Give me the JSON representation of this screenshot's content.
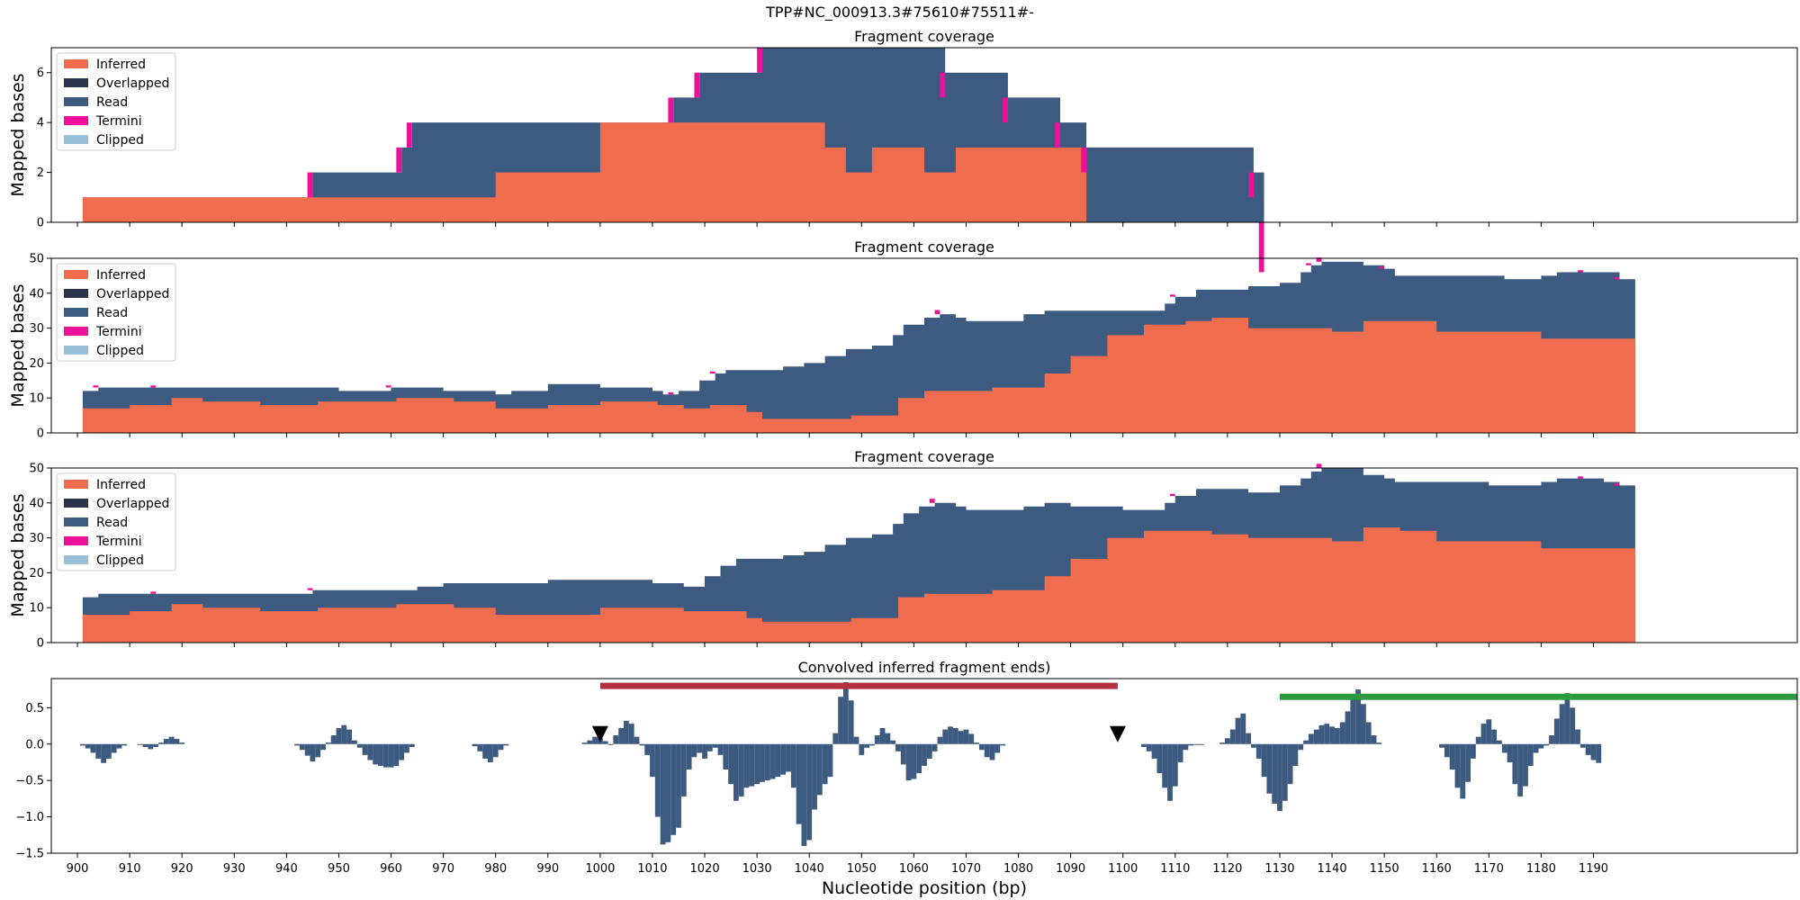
{
  "figure": {
    "suptitle": "TPP#NC_000913.3#75610#75511#-",
    "xlabel": "Nucleotide position (bp)",
    "xlim": [
      895,
      1229
    ],
    "xticks": [
      900,
      910,
      920,
      930,
      940,
      950,
      960,
      970,
      980,
      990,
      1000,
      1010,
      1020,
      1030,
      1040,
      1050,
      1060,
      1070,
      1080,
      1090,
      1100,
      1110,
      1120,
      1130,
      1140,
      1150,
      1160,
      1170,
      1180,
      1190
    ]
  },
  "legend": [
    {
      "name": "Inferred",
      "color": "#ef6c4f"
    },
    {
      "name": "Overlapped",
      "color": "#2a3349"
    },
    {
      "name": "Read",
      "color": "#3d5a80"
    },
    {
      "name": "Termini",
      "color": "#ee109a"
    },
    {
      "name": "Clipped",
      "color": "#98c1d9"
    }
  ],
  "chart_data": [
    {
      "type": "area",
      "title": "Fragment coverage",
      "ylabel": "Mapped bases",
      "ylim": [
        0,
        7
      ],
      "yticks": [
        0,
        2,
        4,
        6
      ],
      "stacked": true,
      "legend_position": "upper-left",
      "inferred": [
        [
          901,
          1
        ],
        [
          945,
          1
        ],
        [
          980,
          2
        ],
        [
          1000,
          4
        ],
        [
          1039,
          4
        ],
        [
          1043,
          3
        ],
        [
          1047,
          2
        ],
        [
          1052,
          3
        ],
        [
          1062,
          2
        ],
        [
          1068,
          3
        ],
        [
          1093,
          0
        ],
        [
          1127,
          0
        ]
      ],
      "total": [
        [
          901,
          1
        ],
        [
          945,
          2
        ],
        [
          962,
          3
        ],
        [
          964,
          4
        ],
        [
          1000,
          4
        ],
        [
          1014,
          5
        ],
        [
          1019,
          6
        ],
        [
          1031,
          7
        ],
        [
          1066,
          6
        ],
        [
          1078,
          5
        ],
        [
          1088,
          4
        ],
        [
          1093,
          3
        ],
        [
          1125,
          2
        ],
        [
          1127,
          0
        ]
      ],
      "termini": [
        [
          945,
          944,
          1
        ],
        [
          962,
          961,
          1
        ],
        [
          964,
          963,
          1
        ],
        [
          1014,
          1013,
          1
        ],
        [
          1019,
          1018,
          1
        ],
        [
          1031,
          1030,
          1
        ],
        [
          1066,
          1065,
          1
        ],
        [
          1078,
          1077,
          1
        ],
        [
          1088,
          1087,
          1
        ],
        [
          1093,
          1092,
          1
        ],
        [
          1125,
          1124,
          1
        ],
        [
          1127,
          1126,
          2
        ]
      ]
    },
    {
      "type": "area",
      "title": "Fragment coverage",
      "ylabel": "Mapped bases",
      "ylim": [
        0,
        50
      ],
      "yticks": [
        0,
        10,
        20,
        30,
        40,
        50
      ],
      "stacked": true,
      "legend_position": "upper-left",
      "inferred": [
        [
          901,
          7
        ],
        [
          910,
          8
        ],
        [
          918,
          10
        ],
        [
          924,
          9
        ],
        [
          935,
          8
        ],
        [
          946,
          9
        ],
        [
          953,
          9
        ],
        [
          961,
          10
        ],
        [
          972,
          9
        ],
        [
          980,
          7
        ],
        [
          990,
          8
        ],
        [
          1000,
          9
        ],
        [
          1011,
          8
        ],
        [
          1016,
          7
        ],
        [
          1021,
          8
        ],
        [
          1028,
          6
        ],
        [
          1031,
          4
        ],
        [
          1048,
          5
        ],
        [
          1057,
          10
        ],
        [
          1062,
          12
        ],
        [
          1075,
          13
        ],
        [
          1085,
          17
        ],
        [
          1090,
          22
        ],
        [
          1097,
          28
        ],
        [
          1104,
          31
        ],
        [
          1112,
          32
        ],
        [
          1117,
          33
        ],
        [
          1124,
          30
        ],
        [
          1140,
          29
        ],
        [
          1146,
          32
        ],
        [
          1153,
          32
        ],
        [
          1160,
          29
        ],
        [
          1170,
          29
        ],
        [
          1180,
          27
        ],
        [
          1198,
          27
        ]
      ],
      "total": [
        [
          901,
          12
        ],
        [
          904,
          13
        ],
        [
          915,
          13
        ],
        [
          920,
          13
        ],
        [
          935,
          13
        ],
        [
          950,
          12
        ],
        [
          960,
          13
        ],
        [
          970,
          12
        ],
        [
          980,
          11
        ],
        [
          983,
          12
        ],
        [
          990,
          14
        ],
        [
          1000,
          13
        ],
        [
          1010,
          12
        ],
        [
          1012,
          11
        ],
        [
          1015,
          12
        ],
        [
          1019,
          15
        ],
        [
          1022,
          17
        ],
        [
          1024,
          18
        ],
        [
          1030,
          18
        ],
        [
          1035,
          19
        ],
        [
          1039,
          20
        ],
        [
          1043,
          22
        ],
        [
          1047,
          24
        ],
        [
          1052,
          25
        ],
        [
          1056,
          28
        ],
        [
          1058,
          31
        ],
        [
          1062,
          33
        ],
        [
          1065,
          34
        ],
        [
          1068,
          33
        ],
        [
          1070,
          32
        ],
        [
          1075,
          32
        ],
        [
          1081,
          34
        ],
        [
          1085,
          35
        ],
        [
          1090,
          35
        ],
        [
          1100,
          35
        ],
        [
          1108,
          37
        ],
        [
          1110,
          39
        ],
        [
          1114,
          41
        ],
        [
          1120,
          41
        ],
        [
          1124,
          42
        ],
        [
          1130,
          43
        ],
        [
          1134,
          46
        ],
        [
          1136,
          48
        ],
        [
          1138,
          49
        ],
        [
          1142,
          49
        ],
        [
          1146,
          48
        ],
        [
          1150,
          47
        ],
        [
          1152,
          45
        ],
        [
          1160,
          45
        ],
        [
          1166,
          45
        ],
        [
          1170,
          45
        ],
        [
          1173,
          44
        ],
        [
          1176,
          44
        ],
        [
          1180,
          45
        ],
        [
          1183,
          46
        ],
        [
          1188,
          46
        ],
        [
          1192,
          46
        ],
        [
          1195,
          44
        ],
        [
          1198,
          44
        ]
      ],
      "termini": [
        [
          904,
          903,
          1
        ],
        [
          915,
          914,
          1
        ],
        [
          960,
          959,
          1
        ],
        [
          1014,
          1013,
          1
        ],
        [
          1022,
          1021,
          1
        ],
        [
          1065,
          1064,
          2
        ],
        [
          1110,
          1109,
          1
        ],
        [
          1136,
          1135,
          1
        ],
        [
          1138,
          1137,
          2
        ],
        [
          1150,
          1149,
          1
        ],
        [
          1188,
          1187,
          1
        ],
        [
          1195,
          1194,
          1
        ]
      ]
    },
    {
      "type": "area",
      "title": "Fragment coverage",
      "ylabel": "Mapped bases",
      "ylim": [
        0,
        50
      ],
      "yticks": [
        0,
        10,
        20,
        30,
        40,
        50
      ],
      "stacked": true,
      "legend_position": "upper-left",
      "inferred": [
        [
          901,
          8
        ],
        [
          910,
          9
        ],
        [
          918,
          11
        ],
        [
          924,
          10
        ],
        [
          935,
          9
        ],
        [
          946,
          10
        ],
        [
          953,
          10
        ],
        [
          961,
          11
        ],
        [
          972,
          10
        ],
        [
          980,
          8
        ],
        [
          990,
          8
        ],
        [
          1000,
          10
        ],
        [
          1011,
          10
        ],
        [
          1016,
          9
        ],
        [
          1021,
          9
        ],
        [
          1028,
          7
        ],
        [
          1031,
          6
        ],
        [
          1048,
          7
        ],
        [
          1057,
          13
        ],
        [
          1062,
          14
        ],
        [
          1075,
          15
        ],
        [
          1085,
          19
        ],
        [
          1090,
          24
        ],
        [
          1097,
          30
        ],
        [
          1104,
          32
        ],
        [
          1112,
          32
        ],
        [
          1117,
          31
        ],
        [
          1124,
          30
        ],
        [
          1140,
          29
        ],
        [
          1146,
          33
        ],
        [
          1153,
          32
        ],
        [
          1160,
          29
        ],
        [
          1170,
          29
        ],
        [
          1180,
          27
        ],
        [
          1198,
          27
        ]
      ],
      "total": [
        [
          901,
          13
        ],
        [
          904,
          14
        ],
        [
          915,
          14
        ],
        [
          920,
          14
        ],
        [
          935,
          14
        ],
        [
          945,
          15
        ],
        [
          955,
          15
        ],
        [
          965,
          16
        ],
        [
          970,
          17
        ],
        [
          980,
          17
        ],
        [
          990,
          18
        ],
        [
          1000,
          18
        ],
        [
          1010,
          17
        ],
        [
          1016,
          16
        ],
        [
          1020,
          19
        ],
        [
          1023,
          22
        ],
        [
          1026,
          24
        ],
        [
          1030,
          24
        ],
        [
          1035,
          25
        ],
        [
          1039,
          26
        ],
        [
          1043,
          28
        ],
        [
          1047,
          30
        ],
        [
          1052,
          31
        ],
        [
          1056,
          34
        ],
        [
          1058,
          37
        ],
        [
          1061,
          39
        ],
        [
          1064,
          40
        ],
        [
          1068,
          39
        ],
        [
          1070,
          38
        ],
        [
          1075,
          38
        ],
        [
          1081,
          39
        ],
        [
          1085,
          40
        ],
        [
          1090,
          39
        ],
        [
          1100,
          38
        ],
        [
          1108,
          40
        ],
        [
          1110,
          42
        ],
        [
          1114,
          44
        ],
        [
          1120,
          44
        ],
        [
          1124,
          43
        ],
        [
          1130,
          45
        ],
        [
          1134,
          47
        ],
        [
          1136,
          49
        ],
        [
          1138,
          50
        ],
        [
          1142,
          50
        ],
        [
          1146,
          48
        ],
        [
          1150,
          47
        ],
        [
          1152,
          46
        ],
        [
          1160,
          46
        ],
        [
          1166,
          46
        ],
        [
          1170,
          45
        ],
        [
          1173,
          45
        ],
        [
          1176,
          45
        ],
        [
          1180,
          46
        ],
        [
          1183,
          47
        ],
        [
          1188,
          47
        ],
        [
          1192,
          46
        ],
        [
          1195,
          45
        ],
        [
          1198,
          45
        ]
      ],
      "termini": [
        [
          915,
          914,
          1
        ],
        [
          945,
          944,
          1
        ],
        [
          1064,
          1063,
          2
        ],
        [
          1110,
          1109,
          1
        ],
        [
          1138,
          1137,
          2
        ],
        [
          1188,
          1187,
          1
        ],
        [
          1195,
          1194,
          1
        ]
      ]
    },
    {
      "type": "bar",
      "title": "Convolved inferred fragment ends)",
      "ylabel": "",
      "ylim": [
        -1.5,
        0.9
      ],
      "yticks": [
        -1.5,
        -1.0,
        -0.5,
        0.0,
        0.5
      ],
      "ytick_labels": [
        "−1.5",
        "−1.0",
        "−0.5",
        "0.0",
        "0.5"
      ],
      "bar_color": "#3d5a80",
      "segments": [
        {
          "start": 901,
          "values": [
            -0.02,
            -0.06,
            -0.12,
            -0.2,
            -0.26,
            -0.2,
            -0.12,
            -0.06,
            -0.02
          ]
        },
        {
          "start": 912,
          "values": [
            -0.01,
            -0.04,
            -0.07,
            -0.04,
            0.02,
            0.07,
            0.1,
            0.07,
            0.02
          ]
        },
        {
          "start": 942,
          "values": [
            -0.02,
            -0.08,
            -0.16,
            -0.24,
            -0.18,
            -0.08,
            0.02,
            0.12,
            0.22,
            0.26,
            0.2,
            0.05,
            -0.05,
            -0.15,
            -0.22,
            -0.28,
            -0.3,
            -0.32,
            -0.32,
            -0.3,
            -0.22,
            -0.12,
            -0.04
          ]
        },
        {
          "start": 976,
          "values": [
            -0.03,
            -0.1,
            -0.2,
            -0.25,
            -0.18,
            -0.08,
            -0.02
          ]
        },
        {
          "start": 997,
          "values": [
            0.02,
            0.05,
            0.1,
            0.08,
            0.04,
            0.0,
            0.12,
            0.22,
            0.32,
            0.28,
            0.1,
            -0.02,
            -0.15,
            -0.45,
            -1.0,
            -1.38,
            -1.35,
            -1.25,
            -1.15,
            -0.72,
            -0.35,
            -0.18,
            -0.12,
            -0.2,
            -0.1,
            -0.05,
            -0.15,
            -0.35,
            -0.55,
            -0.78,
            -0.72,
            -0.6,
            -0.58,
            -0.55,
            -0.52,
            -0.5,
            -0.48,
            -0.45,
            -0.42,
            -0.38,
            -0.6,
            -1.1,
            -1.4,
            -1.32,
            -0.9,
            -0.7,
            -0.55,
            -0.45,
            0.15,
            0.65,
            0.85,
            0.6,
            0.1,
            -0.15,
            -0.05,
            -0.02,
            0.12,
            0.22,
            0.15,
            0.05,
            -0.1,
            -0.28,
            -0.5,
            -0.48,
            -0.4,
            -0.3,
            -0.2,
            -0.1,
            0.1,
            0.2,
            0.24,
            0.22,
            0.18,
            0.2,
            0.14,
            0.02,
            -0.08,
            -0.18,
            -0.22,
            -0.12,
            -0.02
          ]
        },
        {
          "start": 1104,
          "values": [
            -0.04,
            -0.1,
            -0.2,
            -0.4,
            -0.6,
            -0.78,
            -0.58,
            -0.25,
            -0.08,
            -0.02,
            -0.01,
            -0.01
          ]
        },
        {
          "start": 1119,
          "values": [
            0.02,
            0.08,
            0.2,
            0.36,
            0.42,
            0.15,
            -0.05,
            -0.2,
            -0.45,
            -0.68,
            -0.82,
            -0.92,
            -0.78,
            -0.55,
            -0.3,
            -0.08,
            0.05,
            0.14,
            0.2,
            0.26,
            0.28,
            0.24,
            0.22,
            0.3,
            0.45,
            0.62,
            0.75,
            0.55,
            0.3,
            0.12,
            0.02
          ]
        },
        {
          "start": 1161,
          "values": [
            -0.05,
            -0.18,
            -0.35,
            -0.6,
            -0.75,
            -0.52,
            -0.2,
            0.1,
            0.28,
            0.34,
            0.2,
            0.05,
            -0.12,
            -0.25,
            -0.55,
            -0.72,
            -0.58,
            -0.3,
            -0.12,
            -0.06,
            -0.02,
            0.12,
            0.35,
            0.55,
            0.7,
            0.5,
            0.2,
            -0.05,
            -0.15,
            -0.22,
            -0.26
          ]
        }
      ],
      "markers": [
        1000,
        1099
      ],
      "red_line": {
        "x": [
          1000,
          1099
        ],
        "y": 0.8,
        "color": "#b0323f"
      },
      "green_line": {
        "x": [
          1130,
          1229
        ],
        "y": 0.65,
        "color": "#2e9a3e"
      }
    }
  ]
}
